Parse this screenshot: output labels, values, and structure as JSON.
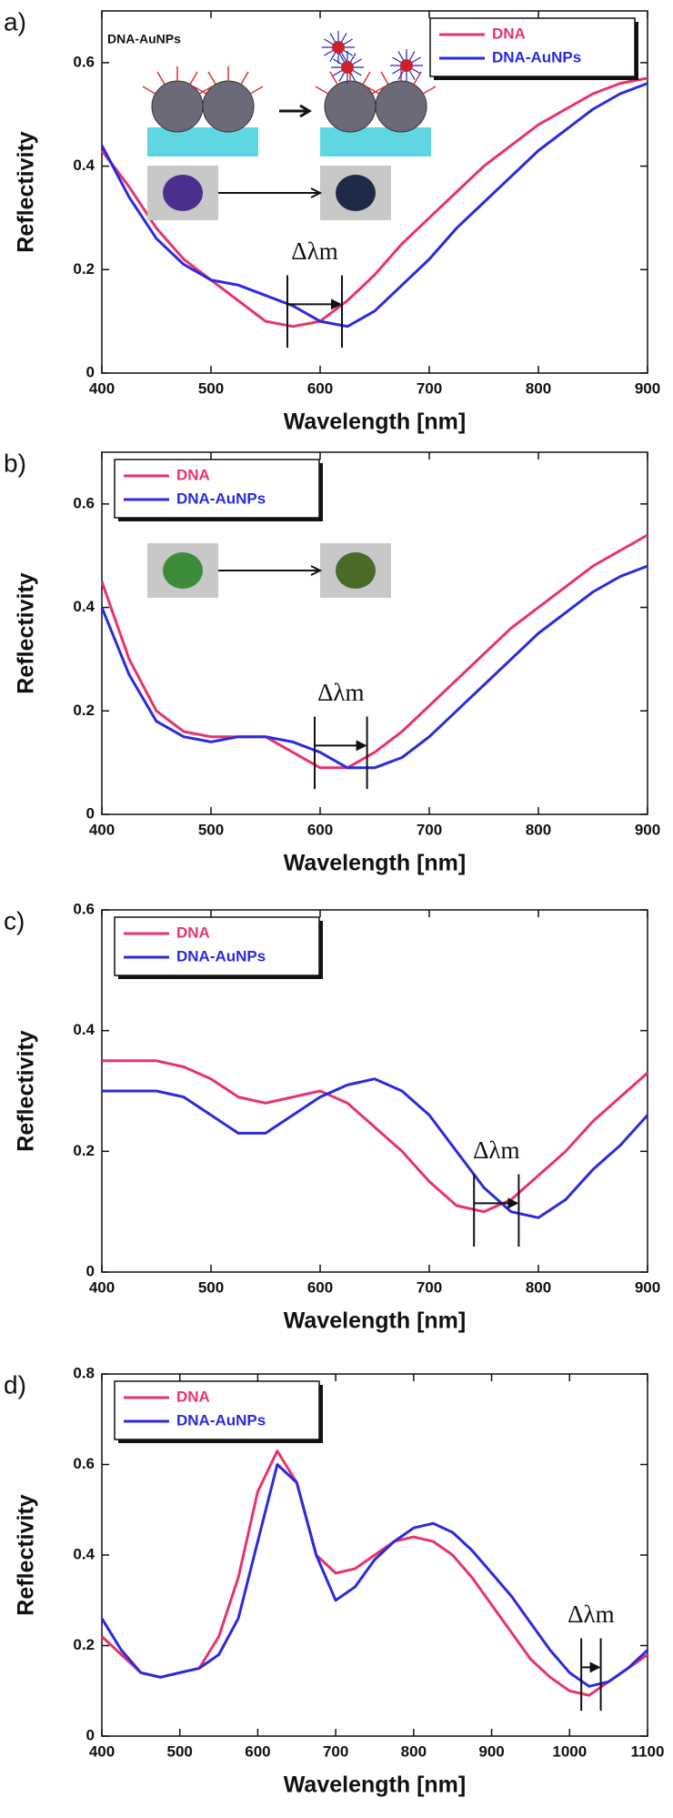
{
  "chart_data": [
    {
      "type": "line",
      "panel_label": "a)",
      "xlabel": "Wavelength [nm]",
      "ylabel": "Reflectivity",
      "x": [
        400,
        425,
        450,
        475,
        500,
        525,
        550,
        575,
        600,
        625,
        650,
        675,
        700,
        725,
        750,
        775,
        800,
        825,
        850,
        875,
        900
      ],
      "series": [
        {
          "name": "DNA",
          "color": "#e8336b",
          "values": [
            0.43,
            0.36,
            0.28,
            0.22,
            0.18,
            0.14,
            0.1,
            0.09,
            0.1,
            0.14,
            0.19,
            0.25,
            0.3,
            0.35,
            0.4,
            0.44,
            0.48,
            0.51,
            0.54,
            0.56,
            0.57
          ]
        },
        {
          "name": "DNA-AuNPs",
          "color": "#2a2ae0",
          "values": [
            0.44,
            0.34,
            0.26,
            0.21,
            0.18,
            0.17,
            0.15,
            0.13,
            0.1,
            0.09,
            0.12,
            0.17,
            0.22,
            0.28,
            0.33,
            0.38,
            0.43,
            0.47,
            0.51,
            0.54,
            0.56
          ]
        }
      ],
      "xlim": [
        400,
        900
      ],
      "xticks": [
        400,
        500,
        600,
        700,
        800,
        900
      ],
      "ylim": [
        0,
        0.7
      ],
      "yticks": [
        0,
        0.2,
        0.4,
        0.6
      ],
      "legend": "upper right",
      "annotation": "Δλm",
      "annotation_x": [
        570,
        620
      ],
      "inset_label": "DNA-AuNPs",
      "photo_colors": [
        "#4a2f8c",
        "#1f2a4a"
      ]
    },
    {
      "type": "line",
      "panel_label": "b)",
      "xlabel": "Wavelength [nm]",
      "ylabel": "Reflectivity",
      "x": [
        400,
        425,
        450,
        475,
        500,
        525,
        550,
        575,
        600,
        625,
        650,
        675,
        700,
        725,
        750,
        775,
        800,
        825,
        850,
        875,
        900
      ],
      "series": [
        {
          "name": "DNA",
          "color": "#e8336b",
          "values": [
            0.45,
            0.3,
            0.2,
            0.16,
            0.15,
            0.15,
            0.15,
            0.12,
            0.09,
            0.09,
            0.12,
            0.16,
            0.21,
            0.26,
            0.31,
            0.36,
            0.4,
            0.44,
            0.48,
            0.51,
            0.54
          ]
        },
        {
          "name": "DNA-AuNPs",
          "color": "#2a2ae0",
          "values": [
            0.4,
            0.27,
            0.18,
            0.15,
            0.14,
            0.15,
            0.15,
            0.14,
            0.12,
            0.09,
            0.09,
            0.11,
            0.15,
            0.2,
            0.25,
            0.3,
            0.35,
            0.39,
            0.43,
            0.46,
            0.48
          ]
        }
      ],
      "xlim": [
        400,
        900
      ],
      "xticks": [
        400,
        500,
        600,
        700,
        800,
        900
      ],
      "ylim": [
        0,
        0.7
      ],
      "yticks": [
        0,
        0.2,
        0.4,
        0.6
      ],
      "legend": "upper left",
      "annotation": "Δλm",
      "annotation_x": [
        595,
        643
      ],
      "photo_colors": [
        "#3c8c3a",
        "#4a6a2a"
      ]
    },
    {
      "type": "line",
      "panel_label": "c)",
      "xlabel": "Wavelength [nm]",
      "ylabel": "Reflectivity",
      "x": [
        400,
        425,
        450,
        475,
        500,
        525,
        550,
        575,
        600,
        625,
        650,
        675,
        700,
        725,
        750,
        775,
        800,
        825,
        850,
        875,
        900
      ],
      "series": [
        {
          "name": "DNA",
          "color": "#e8336b",
          "values": [
            0.35,
            0.35,
            0.35,
            0.34,
            0.32,
            0.29,
            0.28,
            0.29,
            0.3,
            0.28,
            0.24,
            0.2,
            0.15,
            0.11,
            0.1,
            0.12,
            0.16,
            0.2,
            0.25,
            0.29,
            0.33
          ]
        },
        {
          "name": "DNA-AuNPs",
          "color": "#2a2ae0",
          "values": [
            0.3,
            0.3,
            0.3,
            0.29,
            0.26,
            0.23,
            0.23,
            0.26,
            0.29,
            0.31,
            0.32,
            0.3,
            0.26,
            0.2,
            0.14,
            0.1,
            0.09,
            0.12,
            0.17,
            0.21,
            0.26
          ]
        }
      ],
      "xlim": [
        400,
        900
      ],
      "xticks": [
        400,
        500,
        600,
        700,
        800,
        900
      ],
      "ylim": [
        0,
        0.6
      ],
      "yticks": [
        0,
        0.2,
        0.4,
        0.6
      ],
      "legend": "upper left",
      "annotation": "Δλm",
      "annotation_x": [
        741,
        782
      ]
    },
    {
      "type": "line",
      "panel_label": "d)",
      "xlabel": "Wavelength [nm]",
      "ylabel": "Reflectivity",
      "x": [
        400,
        425,
        450,
        475,
        500,
        525,
        550,
        575,
        600,
        625,
        650,
        675,
        700,
        725,
        750,
        775,
        800,
        825,
        850,
        875,
        900,
        925,
        950,
        975,
        1000,
        1025,
        1050,
        1075,
        1100
      ],
      "series": [
        {
          "name": "DNA",
          "color": "#e8336b",
          "values": [
            0.22,
            0.18,
            0.14,
            0.13,
            0.14,
            0.15,
            0.22,
            0.35,
            0.54,
            0.63,
            0.56,
            0.4,
            0.36,
            0.37,
            0.4,
            0.43,
            0.44,
            0.43,
            0.4,
            0.35,
            0.29,
            0.23,
            0.17,
            0.13,
            0.1,
            0.09,
            0.12,
            0.15,
            0.18
          ]
        },
        {
          "name": "DNA-AuNPs",
          "color": "#2a2ae0",
          "values": [
            0.26,
            0.19,
            0.14,
            0.13,
            0.14,
            0.15,
            0.18,
            0.26,
            0.43,
            0.6,
            0.56,
            0.4,
            0.3,
            0.33,
            0.39,
            0.43,
            0.46,
            0.47,
            0.45,
            0.41,
            0.36,
            0.31,
            0.25,
            0.19,
            0.14,
            0.11,
            0.12,
            0.15,
            0.19
          ]
        }
      ],
      "xlim": [
        400,
        1100
      ],
      "xticks": [
        400,
        500,
        600,
        700,
        800,
        900,
        1000,
        1100
      ],
      "ylim": [
        0,
        0.8
      ],
      "yticks": [
        0,
        0.2,
        0.4,
        0.6,
        0.8
      ],
      "legend": "upper left",
      "annotation": "Δλm",
      "annotation_x": [
        1015,
        1040
      ]
    }
  ]
}
